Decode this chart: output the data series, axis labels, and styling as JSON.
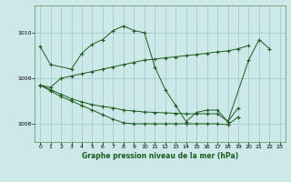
{
  "title": "Graphe pression niveau de la mer (hPa)",
  "bg_color": "#cce8e8",
  "line_color": "#1e5c1e",
  "grid_color": "#9cc8c8",
  "ylim": [
    1007.6,
    1010.6
  ],
  "yticks": [
    1008,
    1009,
    1010
  ],
  "xlim": [
    -0.5,
    23.5
  ],
  "xticks": [
    0,
    1,
    2,
    3,
    4,
    5,
    6,
    7,
    8,
    9,
    10,
    11,
    12,
    13,
    14,
    15,
    16,
    17,
    18,
    19,
    20,
    21,
    22,
    23
  ],
  "series": [
    [
      1009.7,
      1009.3,
      null,
      1009.2,
      1009.55,
      1009.75,
      1009.85,
      1010.05,
      1010.15,
      1010.05,
      1010.0,
      1009.25,
      1008.75,
      1008.4,
      1008.05,
      1008.25,
      1008.3,
      1008.3,
      1008.05,
      null,
      1009.4,
      1009.85,
      1009.65,
      null
    ],
    [
      1008.85,
      1008.8,
      1009.0,
      1009.05,
      1009.1,
      1009.15,
      1009.2,
      1009.25,
      1009.3,
      1009.35,
      1009.4,
      1009.42,
      1009.45,
      1009.47,
      1009.5,
      1009.52,
      1009.55,
      1009.58,
      1009.6,
      1009.65,
      1009.72,
      null,
      null,
      null
    ],
    [
      1008.85,
      1008.75,
      1008.65,
      1008.55,
      1008.48,
      1008.42,
      1008.38,
      1008.35,
      1008.3,
      1008.28,
      1008.26,
      1008.25,
      1008.24,
      1008.23,
      1008.22,
      1008.22,
      1008.22,
      1008.22,
      1008.05,
      1008.35,
      null,
      null,
      null,
      null
    ],
    [
      1008.85,
      1008.72,
      1008.6,
      1008.5,
      1008.4,
      1008.3,
      1008.2,
      1008.1,
      1008.02,
      1008.0,
      1008.0,
      1008.0,
      1008.0,
      1008.0,
      1008.0,
      1008.0,
      1008.0,
      1008.0,
      1007.98,
      1008.15,
      null,
      null,
      null,
      null
    ]
  ]
}
